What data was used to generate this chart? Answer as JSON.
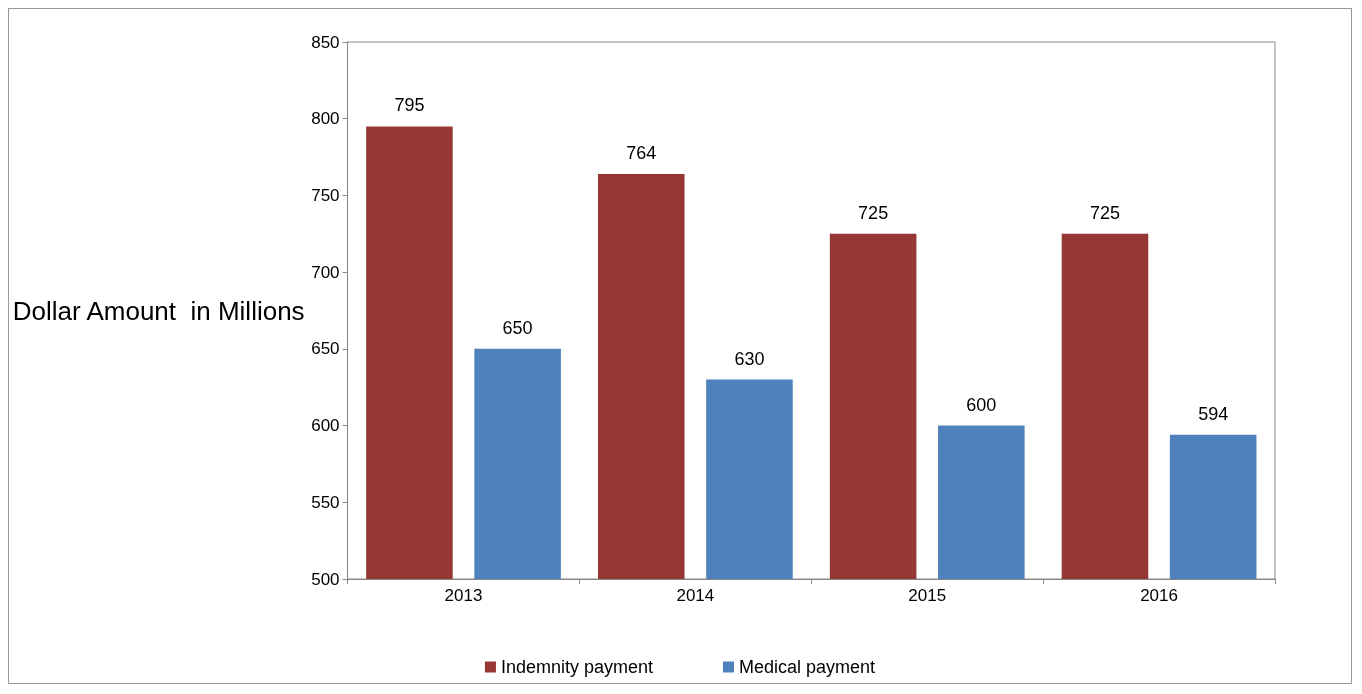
{
  "chart_data": {
    "type": "bar",
    "ylabel": "Dollar Amount  in Millions",
    "categories": [
      "2013",
      "2014",
      "2015",
      "2016"
    ],
    "series": [
      {
        "name": "Indemnity payment",
        "color": "#953735",
        "values": [
          795,
          764,
          725,
          725
        ]
      },
      {
        "name": "Medical payment",
        "color": "#4f81bd",
        "values": [
          650,
          630,
          600,
          594
        ]
      }
    ],
    "ylim": [
      500,
      850
    ],
    "yticks": [
      500,
      550,
      600,
      650,
      700,
      750,
      800,
      850
    ],
    "grid": false,
    "legend": "bottom",
    "data_labels": true
  }
}
